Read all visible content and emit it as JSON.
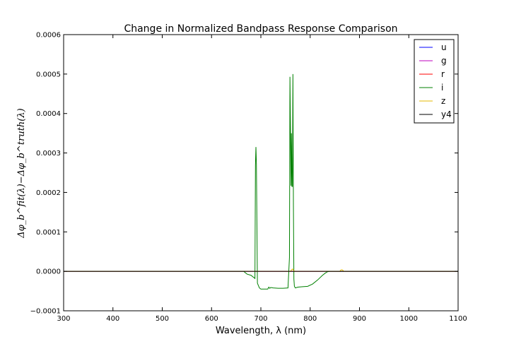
{
  "chart_data": {
    "type": "line",
    "title": "Change in Normalized Bandpass Response Comparison",
    "xlabel": "Wavelength, λ (nm)",
    "ylabel": "Δφ_b^fit(λ)−Δφ_b^truth(λ)",
    "xlim": [
      300,
      1100
    ],
    "ylim": [
      -0.0001,
      0.0006
    ],
    "xticks": [
      "300",
      "400",
      "500",
      "600",
      "700",
      "800",
      "900",
      "1000",
      "1100"
    ],
    "yticks": [
      "−0.0001",
      "0.0000",
      "0.0001",
      "0.0002",
      "0.0003",
      "0.0004",
      "0.0005",
      "0.0006"
    ],
    "xtick_values": [
      300,
      400,
      500,
      600,
      700,
      800,
      900,
      1000,
      1100
    ],
    "ytick_values": [
      -0.0001,
      0,
      0.0001,
      0.0002,
      0.0003,
      0.0004,
      0.0005,
      0.0006
    ],
    "grid": false,
    "legend_position": "top-right",
    "series": [
      {
        "name": "u",
        "color": "#0000ff",
        "x": [
          300,
          1100
        ],
        "y": [
          0,
          0
        ]
      },
      {
        "name": "g",
        "color": "#bf00bf",
        "x": [
          300,
          1100
        ],
        "y": [
          0,
          0
        ]
      },
      {
        "name": "r",
        "color": "#ff0000",
        "x": [
          300,
          1100
        ],
        "y": [
          0,
          0
        ]
      },
      {
        "name": "i",
        "color": "#008000",
        "x": [
          300,
          665,
          672,
          680,
          688,
          689,
          690,
          691,
          693,
          697,
          700,
          708,
          714,
          716,
          718,
          720,
          725,
          735,
          745,
          755,
          758,
          759,
          760,
          761,
          762,
          763,
          764,
          765,
          766,
          767,
          768,
          770,
          775,
          785,
          795,
          805,
          815,
          825,
          830,
          835,
          840,
          1100
        ],
        "y": [
          0,
          0,
          -7e-06,
          -1e-05,
          -1.8e-05,
          0.000268,
          0.000315,
          0.00027,
          -3e-05,
          -4.2e-05,
          -4.5e-05,
          -4.5e-05,
          -4.5e-05,
          -4e-05,
          -4.3e-05,
          -4.1e-05,
          -4.2e-05,
          -4.3e-05,
          -4.3e-05,
          -4.2e-05,
          3.5e-05,
          0.000493,
          0.000365,
          0.000217,
          0.00035,
          0.000215,
          0.000215,
          0.0005,
          0.00017,
          -2e-05,
          -3.8e-05,
          -4.2e-05,
          -4e-05,
          -3.9e-05,
          -3.8e-05,
          -3.2e-05,
          -2.2e-05,
          -1e-05,
          -5e-06,
          -1e-06,
          0,
          0
        ]
      },
      {
        "name": "z",
        "color": "#e6b800",
        "x": [
          300,
          760,
          762,
          764,
          766,
          768,
          860,
          862,
          864,
          866,
          868,
          1100
        ],
        "y": [
          0,
          0,
          3e-06,
          6e-06,
          3e-06,
          0,
          0,
          3e-06,
          4e-06,
          3e-06,
          0,
          0
        ]
      },
      {
        "name": "y4",
        "color": "#000000",
        "x": [
          300,
          1100
        ],
        "y": [
          0,
          0
        ]
      }
    ]
  }
}
